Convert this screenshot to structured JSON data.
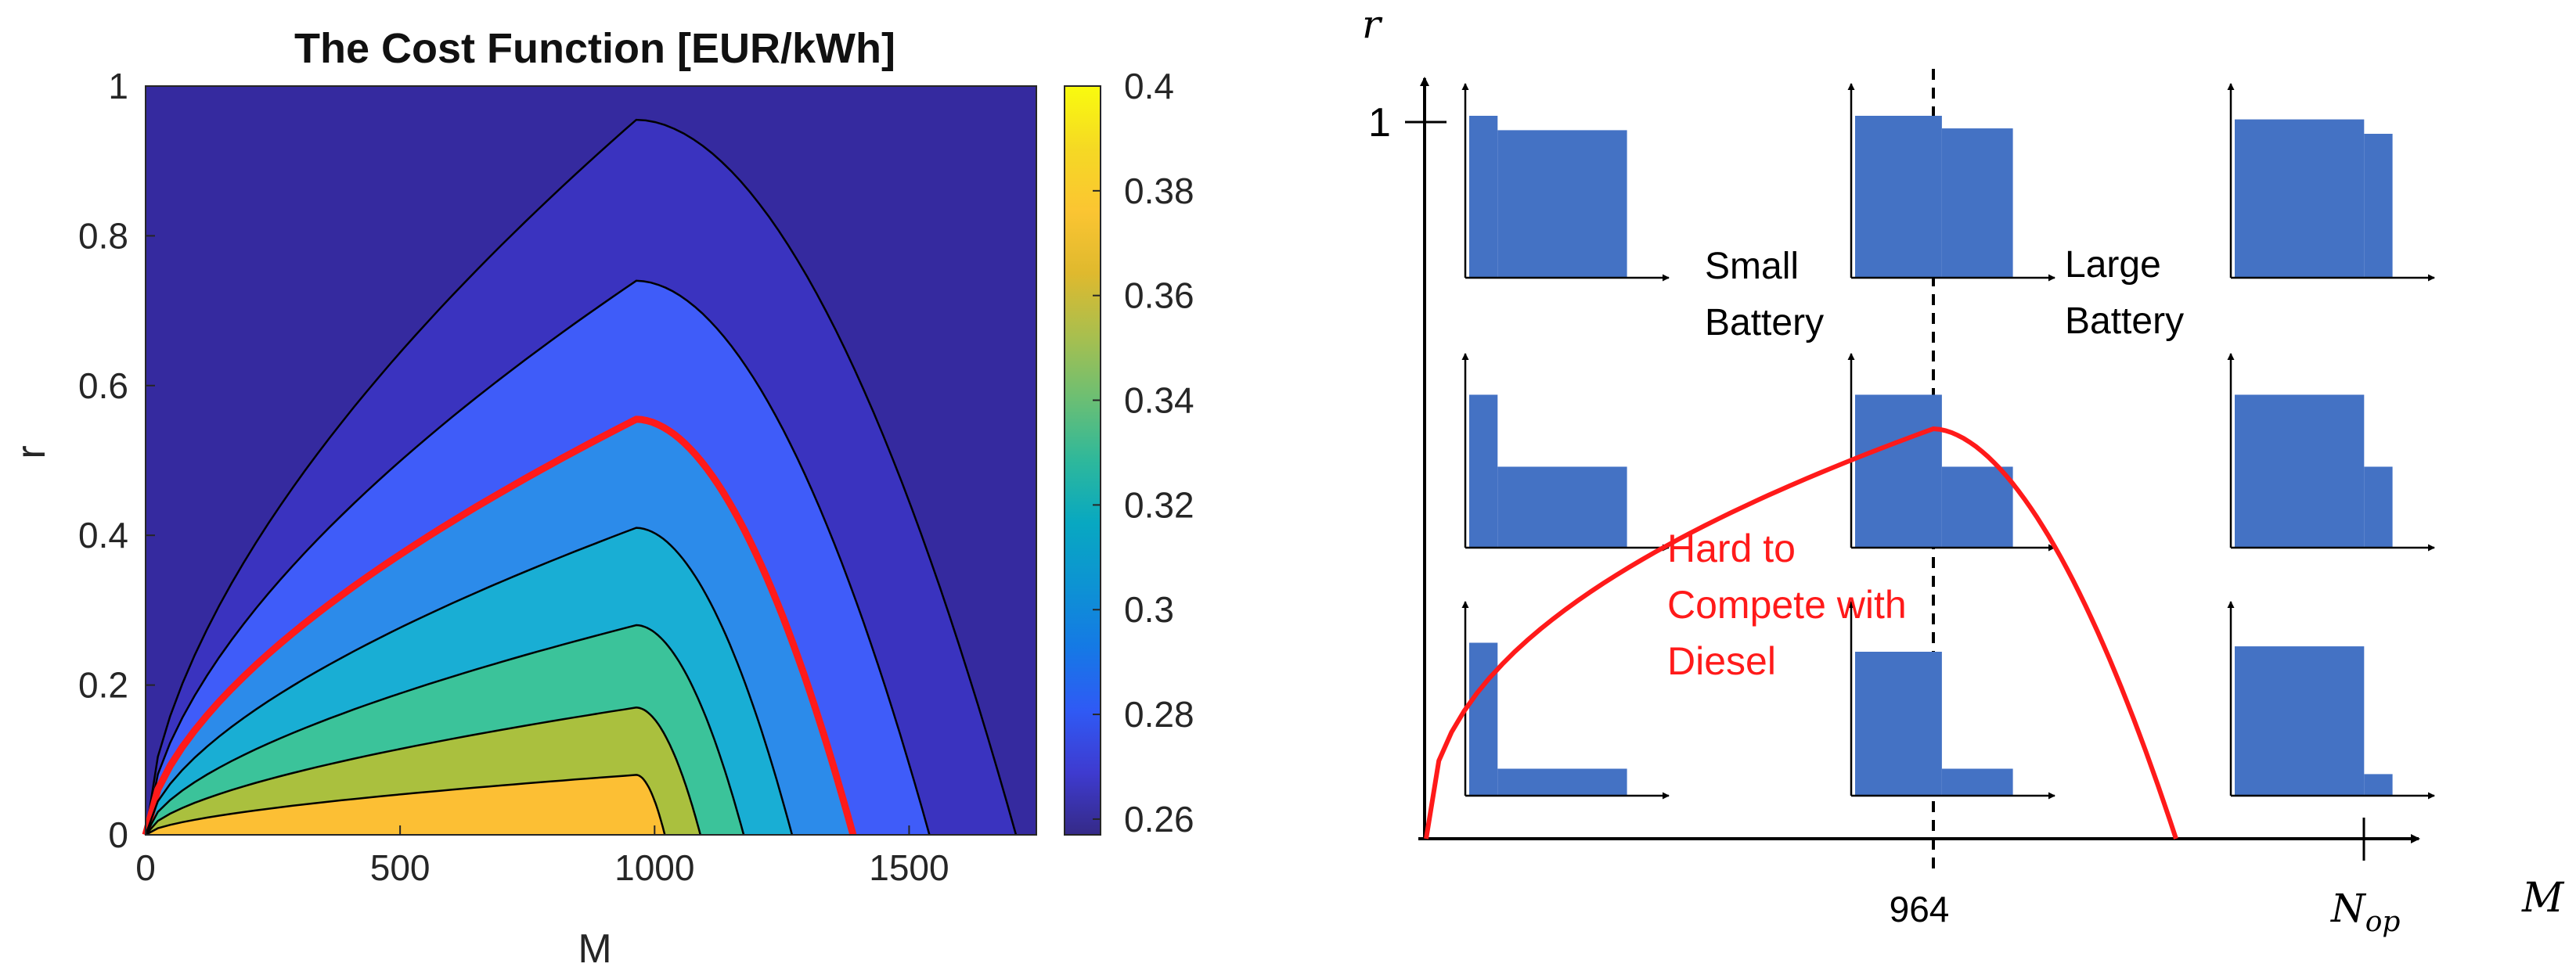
{
  "chart_data": [
    {
      "type": "heatmap",
      "title": "The Cost Function [EUR/kWh]",
      "xlabel": "M",
      "ylabel": "r",
      "xlim": [
        0,
        1750
      ],
      "ylim": [
        0,
        1
      ],
      "xticks": [
        0,
        500,
        1000,
        1500
      ],
      "xtick_labels": [
        "0",
        "500",
        "1000",
        "1500"
      ],
      "yticks": [
        0,
        0.2,
        0.4,
        0.6,
        0.8,
        1
      ],
      "ytick_labels": [
        "0",
        "0.2",
        "0.4",
        "0.6",
        "0.8",
        "1"
      ],
      "colorbar": {
        "range": [
          0.257,
          0.4
        ],
        "ticks": [
          0.26,
          0.28,
          0.3,
          0.32,
          0.34,
          0.36,
          0.38,
          0.4
        ],
        "tick_labels": [
          "0.26",
          "0.28",
          "0.3",
          "0.32",
          "0.34",
          "0.36",
          "0.38",
          "0.4"
        ],
        "colormap": "parula"
      },
      "contour_peak_M": 964,
      "contours": [
        {
          "peak_r": 0.955,
          "end_M": 1710,
          "fill_color": "#3a33bf"
        },
        {
          "peak_r": 0.74,
          "end_M": 1540,
          "fill_color": "#3f5cf9"
        },
        {
          "peak_r": 0.555,
          "end_M": 1390,
          "fill_color": "#2c8bea",
          "highlight": true
        },
        {
          "peak_r": 0.41,
          "end_M": 1270,
          "fill_color": "#19aed4"
        },
        {
          "peak_r": 0.28,
          "end_M": 1175,
          "fill_color": "#3bc39a"
        },
        {
          "peak_r": 0.17,
          "end_M": 1090,
          "fill_color": "#aac03e"
        },
        {
          "peak_r": 0.08,
          "end_M": 1020,
          "fill_color": "#fcbf34"
        }
      ],
      "background_color": "#352a9f",
      "highlight_color": "#ff1a1a"
    },
    {
      "type": "diagram",
      "xlabel": "M",
      "ylabel": "r",
      "y_marker": "1",
      "x_markers": [
        "964",
        "N_op"
      ],
      "region_labels": [
        {
          "text_lines": [
            "Small",
            "Battery"
          ]
        },
        {
          "text_lines": [
            "Large",
            "Battery"
          ]
        }
      ],
      "curve_label_lines": [
        "Hard to",
        "Compete with",
        "Diesel"
      ],
      "curve_color": "#ff1a1a",
      "mini_chart_color": "#4472c4",
      "mini_charts": [
        {
          "row": "top",
          "col": "left",
          "steps": [
            0.9,
            0.82
          ],
          "split": 0.18
        },
        {
          "row": "top",
          "col": "mid",
          "steps": [
            0.9,
            0.83
          ],
          "split": 0.55
        },
        {
          "row": "top",
          "col": "right",
          "steps": [
            0.88,
            0.8
          ],
          "split": 0.82
        },
        {
          "row": "mid",
          "col": "left",
          "steps": [
            0.85,
            0.45
          ],
          "split": 0.18
        },
        {
          "row": "mid",
          "col": "mid",
          "steps": [
            0.85,
            0.45
          ],
          "split": 0.55
        },
        {
          "row": "mid",
          "col": "right",
          "steps": [
            0.85,
            0.45
          ],
          "split": 0.82
        },
        {
          "row": "bottom",
          "col": "left",
          "steps": [
            0.85,
            0.15
          ],
          "split": 0.18
        },
        {
          "row": "bottom",
          "col": "mid",
          "steps": [
            0.8,
            0.15
          ],
          "split": 0.55
        },
        {
          "row": "bottom",
          "col": "right",
          "steps": [
            0.83,
            0.12
          ],
          "split": 0.82
        }
      ]
    }
  ]
}
